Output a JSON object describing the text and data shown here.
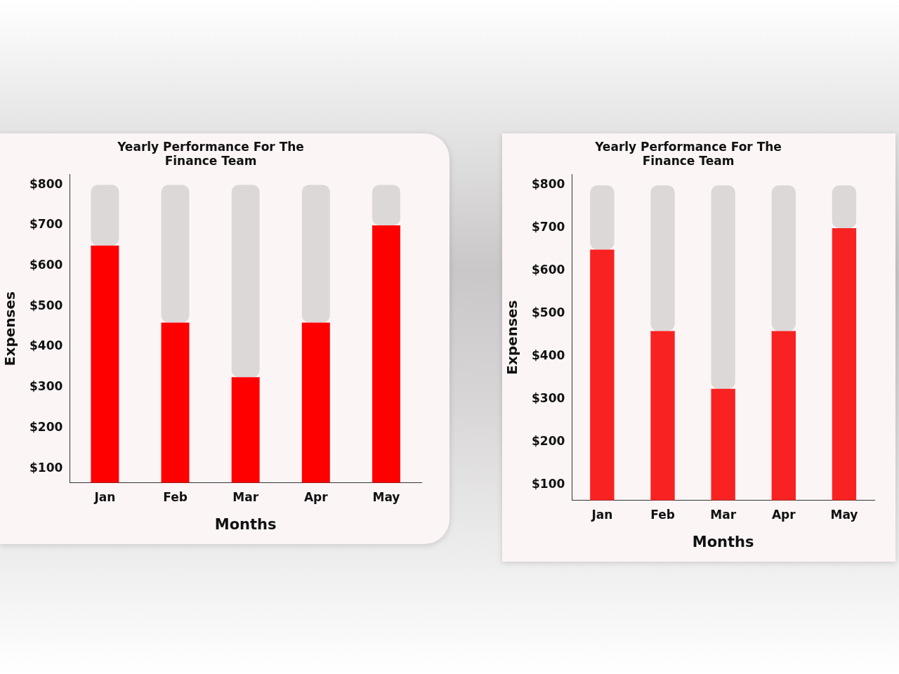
{
  "chart_data": [
    {
      "type": "bar",
      "title": "Yearly Performance For The\nFinance Team",
      "xlabel": "Months",
      "ylabel": "Expenses",
      "categories": [
        "Jan",
        "Feb",
        "Mar",
        "Apr",
        "May"
      ],
      "stacked": true,
      "series": [
        {
          "color": "#ff0000",
          "values": [
            650,
            460,
            325,
            460,
            700
          ]
        },
        {
          "color": "#dcd8d8",
          "values": [
            150,
            340,
            475,
            340,
            100
          ]
        }
      ],
      "ylim": [
        65,
        825
      ],
      "yticks": [
        {
          "value": 100,
          "label": "$100"
        },
        {
          "value": 200,
          "label": "$200"
        },
        {
          "value": 300,
          "label": "$300"
        },
        {
          "value": 400,
          "label": "$400"
        },
        {
          "value": 500,
          "label": "$500"
        },
        {
          "value": 600,
          "label": "$600"
        },
        {
          "value": 700,
          "label": "$700"
        },
        {
          "value": 800,
          "label": "$800"
        }
      ],
      "grid": false,
      "legend": false
    },
    {
      "type": "bar",
      "title": "Yearly Performance For The\nFinance Team",
      "xlabel": "Months",
      "ylabel": "Expenses",
      "categories": [
        "Jan",
        "Feb",
        "Mar",
        "Apr",
        "May"
      ],
      "stacked": true,
      "series": [
        {
          "color": "#f92222",
          "values": [
            650,
            460,
            325,
            460,
            700
          ]
        },
        {
          "color": "#dcd8d8",
          "values": [
            150,
            340,
            475,
            340,
            100
          ]
        }
      ],
      "ylim": [
        65,
        825
      ],
      "yticks": [
        {
          "value": 100,
          "label": "$100"
        },
        {
          "value": 200,
          "label": "$200"
        },
        {
          "value": 300,
          "label": "$300"
        },
        {
          "value": 400,
          "label": "$400"
        },
        {
          "value": 500,
          "label": "$500"
        },
        {
          "value": 600,
          "label": "$600"
        },
        {
          "value": 700,
          "label": "$700"
        },
        {
          "value": 800,
          "label": "$800"
        }
      ],
      "grid": false,
      "legend": false
    }
  ]
}
